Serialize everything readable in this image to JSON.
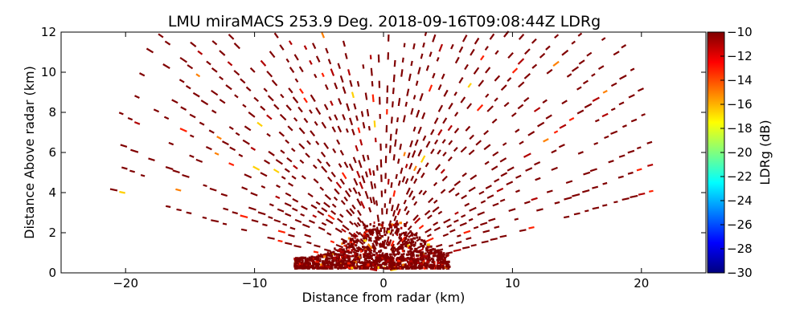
{
  "chart_data": {
    "type": "heatmap",
    "title": "LMU miraMACS 253.9 Deg. 2018-09-16T09:08:44Z  LDRg",
    "xlabel": "Distance from radar (km)",
    "ylabel": "Distance Above radar  (km)",
    "xlim": [
      -25,
      25
    ],
    "ylim": [
      0,
      12
    ],
    "xticks": [
      "−20",
      "−10",
      "0",
      "10",
      "20"
    ],
    "xtick_values": [
      -20,
      -10,
      0,
      10,
      20
    ],
    "yticks": [
      "0",
      "2",
      "4",
      "6",
      "8",
      "10",
      "12"
    ],
    "ytick_values": [
      0,
      2,
      4,
      6,
      8,
      10,
      12
    ],
    "colorbar": {
      "label": "LDRg (dB)",
      "range": [
        -30,
        -10
      ],
      "ticks": [
        "−10",
        "−12",
        "−14",
        "−16",
        "−18",
        "−20",
        "−22",
        "−24",
        "−26",
        "−28",
        "−30"
      ],
      "tick_values": [
        -10,
        -12,
        -14,
        -16,
        -18,
        -20,
        -22,
        -24,
        -26,
        -28,
        -30
      ],
      "colormap": "jet"
    },
    "scan": {
      "elevation_range_deg": [
        11,
        169
      ],
      "max_range_km": 22,
      "ray_count": 48,
      "dominant_value_db": -10,
      "dense_zone_km": {
        "x": [
          -7,
          5
        ],
        "y": [
          0,
          2.5
        ]
      }
    }
  },
  "colors": {
    "dominant": "#800000",
    "jet": [
      "#00007f",
      "#0000ff",
      "#007fff",
      "#00ffff",
      "#7fff7f",
      "#ffff00",
      "#ff7f00",
      "#ff0000",
      "#7f0000"
    ]
  }
}
